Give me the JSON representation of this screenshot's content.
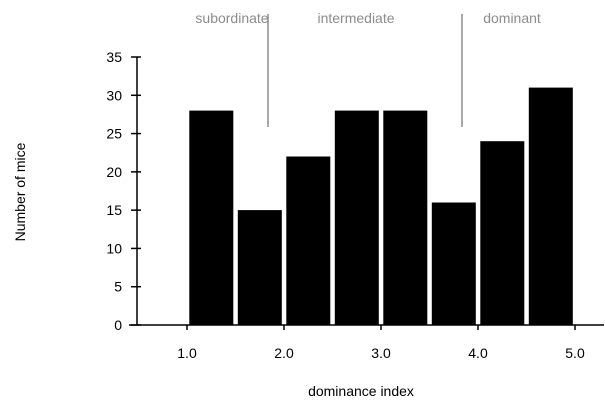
{
  "chart_data": {
    "type": "bar",
    "bar_values": [
      28,
      15,
      22,
      28,
      28,
      16,
      24,
      31
    ],
    "x": [
      1.25,
      1.75,
      2.25,
      2.75,
      3.25,
      3.75,
      4.25,
      4.75
    ],
    "x_ticks": [
      {
        "value": 1.0,
        "label": "1.0"
      },
      {
        "value": 2.0,
        "label": "2.0"
      },
      {
        "value": 3.0,
        "label": "3.0"
      },
      {
        "value": 4.0,
        "label": "4.0"
      },
      {
        "value": 5.0,
        "label": "5.0"
      }
    ],
    "y_ticks": [
      {
        "value": 0,
        "label": "0"
      },
      {
        "value": 5,
        "label": "5"
      },
      {
        "value": 10,
        "label": "10"
      },
      {
        "value": 15,
        "label": "15"
      },
      {
        "value": 20,
        "label": "20"
      },
      {
        "value": 25,
        "label": "25"
      },
      {
        "value": 30,
        "label": "30"
      },
      {
        "value": 35,
        "label": "35"
      }
    ],
    "xlabel": "dominance index",
    "ylabel": "Number of mice",
    "ylim": [
      0,
      35
    ],
    "grid": false,
    "bar_color": "#000000",
    "region_labels": [
      {
        "label": "subordinate"
      },
      {
        "label": "intermediate"
      },
      {
        "label": "dominant"
      }
    ],
    "region_dividers": [
      2.0,
      4.0
    ],
    "annotation_color": "#8c8c8c"
  }
}
